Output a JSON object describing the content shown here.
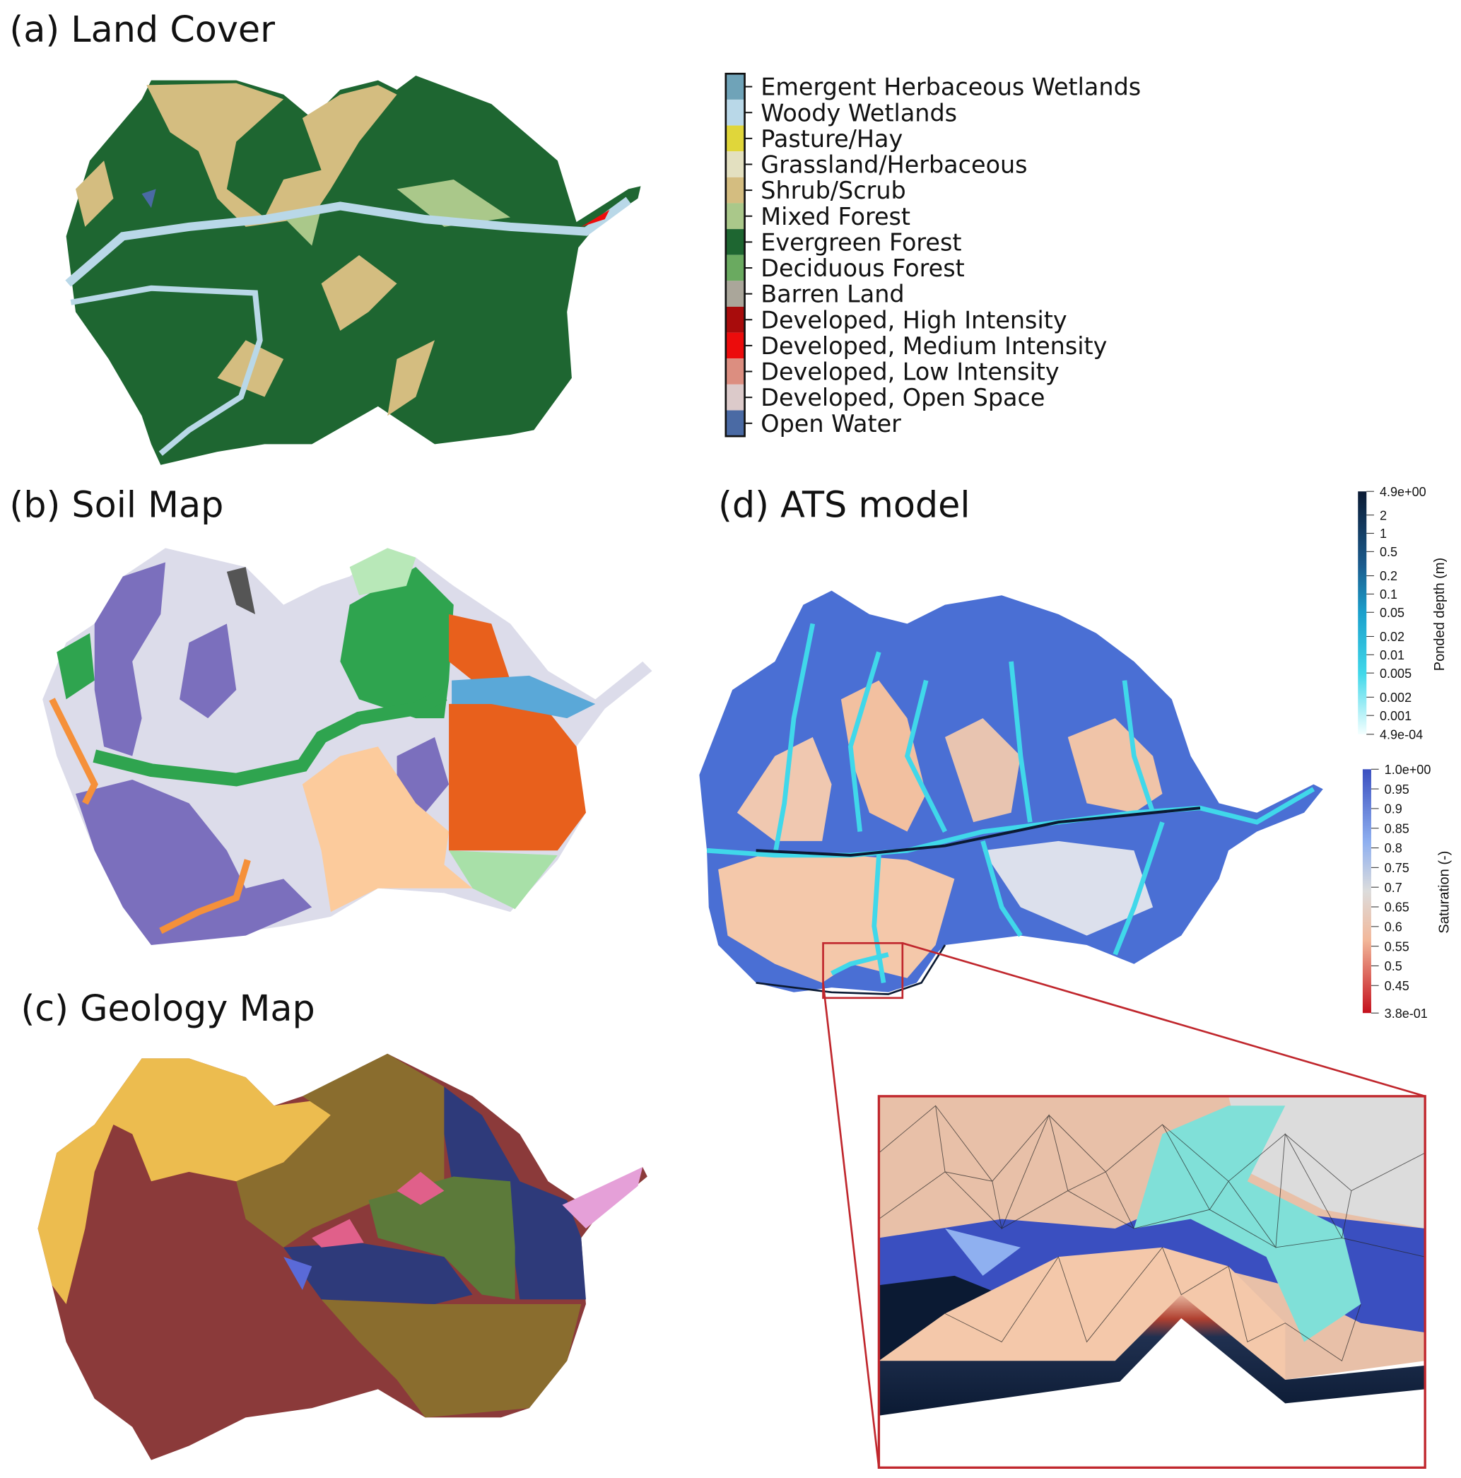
{
  "panels": {
    "a": {
      "title": "(a) Land Cover"
    },
    "b": {
      "title": "(b) Soil Map"
    },
    "c": {
      "title": "(c) Geology Map"
    },
    "d": {
      "title": "(d) ATS model"
    }
  },
  "land_cover_legend": [
    {
      "label": "Emergent Herbaceous Wetlands",
      "color": "#6fa3b8"
    },
    {
      "label": "Woody Wetlands",
      "color": "#b9d8e8"
    },
    {
      "label": "Pasture/Hay",
      "color": "#e0d63a"
    },
    {
      "label": "Grassland/Herbaceous",
      "color": "#e3e0c0"
    },
    {
      "label": "Shrub/Scrub",
      "color": "#d4bd80"
    },
    {
      "label": "Mixed Forest",
      "color": "#aac88a"
    },
    {
      "label": "Evergreen Forest",
      "color": "#1e6631"
    },
    {
      "label": "Deciduous Forest",
      "color": "#6aaa60"
    },
    {
      "label": "Barren Land",
      "color": "#aaa69a"
    },
    {
      "label": "Developed, High Intensity",
      "color": "#a80c0c"
    },
    {
      "label": "Developed, Medium Intensity",
      "color": "#ec0c0c"
    },
    {
      "label": "Developed, Low Intensity",
      "color": "#dc8e80"
    },
    {
      "label": "Developed, Open Space",
      "color": "#dccaca"
    },
    {
      "label": "Open Water",
      "color": "#4a6aa4"
    }
  ],
  "ponded_depth_colorbar": {
    "title": "Ponded depth (m)",
    "scale": "log",
    "range": [
      0.00049,
      4.9
    ],
    "ticks": [
      {
        "value": 4.9,
        "label": "4.9e+00"
      },
      {
        "value": 2,
        "label": "2"
      },
      {
        "value": 1,
        "label": "1"
      },
      {
        "value": 0.5,
        "label": "0.5"
      },
      {
        "value": 0.2,
        "label": "0.2"
      },
      {
        "value": 0.1,
        "label": "0.1"
      },
      {
        "value": 0.05,
        "label": "0.05"
      },
      {
        "value": 0.02,
        "label": "0.02"
      },
      {
        "value": 0.01,
        "label": "0.01"
      },
      {
        "value": 0.005,
        "label": "0.005"
      },
      {
        "value": 0.002,
        "label": "0.002"
      },
      {
        "value": 0.001,
        "label": "0.001"
      },
      {
        "value": 0.00049,
        "label": "4.9e-04"
      }
    ],
    "colors": [
      "#0b1a33",
      "#1a5a8c",
      "#1aa0cc",
      "#40d8ea",
      "#f4ffff"
    ]
  },
  "saturation_colorbar": {
    "title": "Saturation (-)",
    "scale": "linear",
    "range": [
      0.38,
      1.0
    ],
    "ticks": [
      {
        "value": 1.0,
        "label": "1.0e+00"
      },
      {
        "value": 0.95,
        "label": "0.95"
      },
      {
        "value": 0.9,
        "label": "0.9"
      },
      {
        "value": 0.85,
        "label": "0.85"
      },
      {
        "value": 0.8,
        "label": "0.8"
      },
      {
        "value": 0.75,
        "label": "0.75"
      },
      {
        "value": 0.7,
        "label": "0.7"
      },
      {
        "value": 0.65,
        "label": "0.65"
      },
      {
        "value": 0.6,
        "label": "0.6"
      },
      {
        "value": 0.55,
        "label": "0.55"
      },
      {
        "value": 0.5,
        "label": "0.5"
      },
      {
        "value": 0.45,
        "label": "0.45"
      },
      {
        "value": 0.38,
        "label": "3.8e-01"
      }
    ],
    "colors": [
      "#3a4fc0",
      "#8fb0f0",
      "#dcdcdc",
      "#f2b89a",
      "#c4101c"
    ]
  }
}
